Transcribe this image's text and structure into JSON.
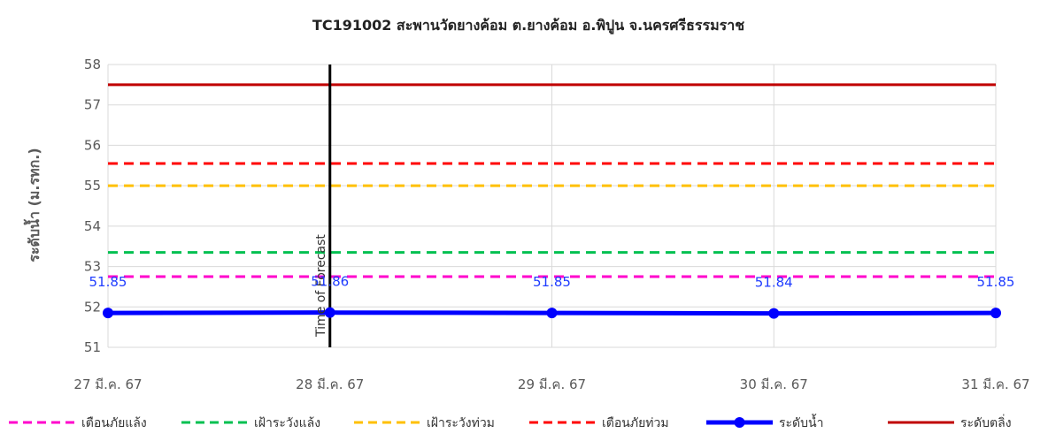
{
  "chart_data": {
    "type": "line",
    "title": "TC191002 สะพานวัดยางค้อม ต.ยางค้อม อ.พิปูน จ.นครศรีธรรมราช",
    "xlabel": "",
    "ylabel": "ระดับน้ำ (ม.รทก.)",
    "ylim": [
      51,
      58
    ],
    "yticks": [
      "51",
      "52",
      "53",
      "54",
      "55",
      "56",
      "57",
      "58"
    ],
    "categories": [
      "27 มี.ค. 67",
      "28 มี.ค. 67",
      "29 มี.ค. 67",
      "30 มี.ค. 67",
      "31 มี.ค. 67"
    ],
    "grid": true,
    "legend_position": "bottom",
    "series": [
      {
        "name": "เตือนภัยแล้ง",
        "style": "dashed",
        "color": "#ff00cc",
        "values": [
          52.75,
          52.75,
          52.75,
          52.75,
          52.75
        ]
      },
      {
        "name": "เฝ้าระวังแล้ง",
        "style": "dashed",
        "color": "#00c050",
        "values": [
          53.35,
          53.35,
          53.35,
          53.35,
          53.35
        ]
      },
      {
        "name": "เฝ้าระวังท่วม",
        "style": "dashed",
        "color": "#ffc000",
        "values": [
          55.0,
          55.0,
          55.0,
          55.0,
          55.0
        ]
      },
      {
        "name": "เตือนภัยท่วม",
        "style": "dashed",
        "color": "#ff0000",
        "values": [
          55.55,
          55.55,
          55.55,
          55.55,
          55.55
        ]
      },
      {
        "name": "ระดับน้ำ",
        "style": "solid-marker",
        "color": "#0000ff",
        "values": [
          51.85,
          51.86,
          51.85,
          51.84,
          51.85
        ],
        "labels": [
          "51.85",
          "51.86",
          "51.85",
          "51.84",
          "51.85"
        ]
      },
      {
        "name": "ระดับตลิ่ง",
        "style": "solid",
        "color": "#c00000",
        "values": [
          57.5,
          57.5,
          57.5,
          57.5,
          57.5
        ]
      }
    ],
    "annotation": {
      "text": "Time of Forecast",
      "category_index": 1
    }
  }
}
